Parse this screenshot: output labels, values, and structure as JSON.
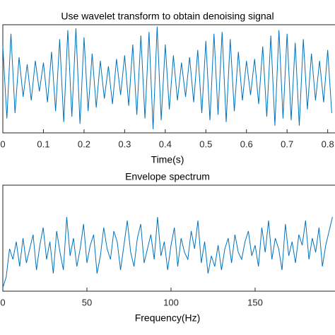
{
  "chart_data": [
    {
      "type": "line",
      "title": "Use wavelet transform to obtain denoising signal",
      "xlabel": "Time(s)",
      "xlim": [
        0,
        0.818
      ],
      "ylim": [
        -3,
        3
      ],
      "xticks": [
        0,
        0.1,
        0.2,
        0.3,
        0.4,
        0.5,
        0.6,
        0.7,
        0.8
      ],
      "x": [
        0,
        0.01,
        0.02,
        0.03,
        0.04,
        0.05,
        0.06,
        0.07,
        0.08,
        0.09,
        0.1,
        0.11,
        0.12,
        0.13,
        0.14,
        0.15,
        0.16,
        0.17,
        0.18,
        0.19,
        0.2,
        0.21,
        0.22,
        0.23,
        0.24,
        0.25,
        0.26,
        0.27,
        0.28,
        0.29,
        0.3,
        0.31,
        0.32,
        0.33,
        0.34,
        0.35,
        0.36,
        0.37,
        0.38,
        0.39,
        0.4,
        0.41,
        0.42,
        0.43,
        0.44,
        0.45,
        0.46,
        0.47,
        0.48,
        0.49,
        0.5,
        0.51,
        0.52,
        0.53,
        0.54,
        0.55,
        0.56,
        0.57,
        0.58,
        0.59,
        0.6,
        0.61,
        0.62,
        0.63,
        0.64,
        0.65,
        0.66,
        0.67,
        0.68,
        0.69,
        0.7,
        0.71,
        0.72,
        0.73,
        0.74,
        0.75,
        0.76,
        0.77,
        0.78,
        0.79,
        0.8,
        0.81
      ],
      "series": [
        {
          "color": "#0072bd",
          "values": [
            1.8,
            -2.2,
            2.5,
            -1.9,
            1.2,
            -1.0,
            0.8,
            -1.2,
            1.0,
            -0.7,
            0.9,
            -1.3,
            1.5,
            -1.8,
            2.2,
            -2.4,
            2.7,
            -2.1,
            2.8,
            -2.5,
            2.3,
            -1.8,
            1.4,
            -1.6,
            1.0,
            -1.1,
            0.7,
            -1.4,
            1.1,
            -0.9,
            1.3,
            -1.5,
            1.9,
            -2.0,
            2.4,
            -2.2,
            2.6,
            -2.8,
            2.9,
            -2.3,
            1.9,
            -1.7,
            1.3,
            -1.2,
            0.9,
            -1.0,
            1.2,
            -1.3,
            1.6,
            -1.9,
            2.1,
            -2.3,
            2.5,
            -2.0,
            2.6,
            -2.4,
            2.2,
            -1.8,
            1.5,
            -1.2,
            1.0,
            -0.9,
            1.1,
            -1.4,
            1.8,
            -2.1,
            2.4,
            -2.6,
            2.7,
            -2.2,
            2.5,
            -2.3,
            2.0,
            -2.6,
            2.2,
            -1.7,
            1.4,
            -1.2,
            1.0,
            -1.3,
            1.6,
            -1.9
          ]
        }
      ]
    },
    {
      "type": "line",
      "title": "Envelope spectrum",
      "xlabel": "Frequency(Hz)",
      "xlim": [
        0,
        197.5
      ],
      "ylim": [
        0,
        3
      ],
      "xticks": [
        0,
        50,
        100,
        150
      ],
      "x": [
        0,
        2,
        4,
        6,
        8,
        10,
        12,
        14,
        16,
        18,
        20,
        22,
        24,
        26,
        28,
        30,
        32,
        34,
        36,
        38,
        40,
        42,
        44,
        46,
        48,
        50,
        52,
        54,
        56,
        58,
        60,
        62,
        64,
        66,
        68,
        70,
        72,
        74,
        76,
        78,
        80,
        82,
        84,
        86,
        88,
        90,
        92,
        94,
        96,
        98,
        100,
        102,
        104,
        106,
        108,
        110,
        112,
        114,
        116,
        118,
        120,
        122,
        124,
        126,
        128,
        130,
        132,
        134,
        136,
        138,
        140,
        142,
        144,
        146,
        148,
        150,
        152,
        154,
        156,
        158,
        160,
        162,
        164,
        166,
        168,
        170,
        172,
        174,
        176,
        178,
        180,
        182,
        184,
        186,
        188,
        190,
        192,
        194,
        196
      ],
      "series": [
        {
          "color": "#0072bd",
          "values": [
            0.1,
            0.4,
            1.2,
            0.9,
            1.4,
            0.7,
            1.5,
            0.8,
            1.2,
            1.6,
            0.6,
            1.3,
            1.8,
            0.9,
            1.4,
            0.5,
            1.7,
            1.1,
            0.6,
            2.1,
            1.0,
            1.5,
            0.7,
            1.2,
            1.9,
            0.8,
            1.3,
            1.6,
            0.5,
            1.0,
            1.8,
            1.2,
            0.9,
            1.7,
            1.4,
            0.6,
            1.3,
            2.0,
            1.1,
            0.7,
            1.5,
            1.9,
            0.8,
            1.2,
            1.6,
            0.9,
            2.1,
            1.0,
            1.4,
            0.6,
            1.3,
            1.8,
            0.7,
            1.5,
            1.1,
            0.9,
            1.7,
            1.2,
            2.0,
            0.8,
            1.4,
            0.5,
            1.0,
            0.7,
            1.3,
            0.6,
            1.2,
            1.5,
            0.8,
            1.6,
            1.1,
            0.9,
            1.4,
            1.7,
            1.0,
            1.3,
            0.7,
            1.8,
            1.1,
            2.0,
            0.9,
            1.5,
            1.2,
            0.6,
            1.9,
            1.0,
            1.4,
            0.8,
            1.6,
            1.3,
            2.0,
            0.9,
            1.5,
            1.1,
            1.8,
            0.7,
            1.3,
            1.7,
            2.1
          ]
        }
      ]
    }
  ]
}
